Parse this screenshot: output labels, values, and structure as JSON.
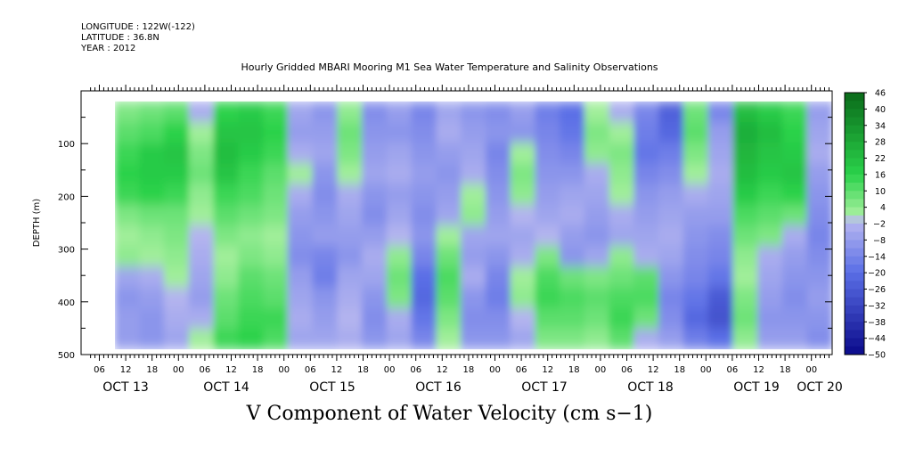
{
  "header": {
    "longitude": "LONGITUDE : 122W(-122)",
    "latitude": "LATITUDE : 36.8N",
    "year": "YEAR : 2012"
  },
  "chart_data": {
    "type": "heatmap",
    "title": "Hourly Gridded MBARI Mooring M1 Sea Water Temperature and Salinity Observations",
    "xlabel": "V Component of Water Velocity (cm s−1)",
    "ylabel": "DEPTH (m)",
    "y_range": [
      500,
      0
    ],
    "y_ticks": [
      100,
      200,
      300,
      400,
      500
    ],
    "data_depth_range": [
      20,
      490
    ],
    "x_hour_ticks": [
      "06",
      "12",
      "18",
      "00",
      "06",
      "12",
      "18",
      "00",
      "06",
      "12",
      "18",
      "00",
      "06",
      "12",
      "18",
      "00",
      "06",
      "12",
      "18",
      "00",
      "06",
      "12",
      "18",
      "00",
      "06",
      "12",
      "18",
      "00"
    ],
    "x_day_labels": [
      "OCT 13",
      "OCT 14",
      "OCT 15",
      "OCT 16",
      "OCT 17",
      "OCT 18",
      "OCT 19",
      "OCT 20"
    ],
    "colorbar_labels": [
      "46",
      "40",
      "34",
      "28",
      "22",
      "16",
      "10",
      "4",
      "-2",
      "-8",
      "-14",
      "-20",
      "-26",
      "-32",
      "-38",
      "-44",
      "-50"
    ],
    "colors": {
      "strong_positive": "#0a6a1a",
      "positive": "#2ad24a",
      "weak_positive": "#a8f0a0",
      "weak_negative": "#b8b8f0",
      "negative": "#5a6ee6",
      "strong_negative": "#0a0a8a"
    },
    "columns": [
      {
        "day_hour": "OCT 13 03",
        "profile": [
          6,
          10,
          14,
          16,
          14,
          6,
          2,
          4,
          -6,
          -10,
          -8,
          -8
        ]
      },
      {
        "day_hour": "OCT 13 09",
        "profile": [
          8,
          12,
          18,
          18,
          16,
          8,
          4,
          2,
          -4,
          -8,
          -10,
          -10
        ]
      },
      {
        "day_hour": "OCT 13 15",
        "profile": [
          10,
          16,
          20,
          18,
          14,
          8,
          6,
          4,
          2,
          -2,
          -4,
          -6
        ]
      },
      {
        "day_hour": "OCT 13 21",
        "profile": [
          -4,
          2,
          6,
          8,
          4,
          2,
          -2,
          -4,
          -6,
          -8,
          -4,
          2
        ]
      },
      {
        "day_hour": "OCT 14 03",
        "profile": [
          16,
          20,
          22,
          20,
          14,
          10,
          6,
          2,
          4,
          8,
          10,
          14
        ]
      },
      {
        "day_hour": "OCT 14 09",
        "profile": [
          18,
          20,
          18,
          14,
          12,
          8,
          4,
          6,
          10,
          12,
          14,
          16
        ]
      },
      {
        "day_hour": "OCT 14 15",
        "profile": [
          14,
          16,
          14,
          10,
          8,
          6,
          2,
          4,
          8,
          10,
          14,
          12
        ]
      },
      {
        "day_hour": "OCT 14 21",
        "profile": [
          -6,
          -8,
          -4,
          2,
          -4,
          -8,
          -10,
          -12,
          -8,
          -6,
          -4,
          -6
        ]
      },
      {
        "day_hour": "OCT 15 03",
        "profile": [
          -10,
          -8,
          -6,
          -10,
          -12,
          -10,
          -8,
          -14,
          -16,
          -10,
          -8,
          -6
        ]
      },
      {
        "day_hour": "OCT 15 09",
        "profile": [
          4,
          8,
          6,
          2,
          -4,
          -6,
          -8,
          -10,
          -6,
          -4,
          -2,
          -4
        ]
      },
      {
        "day_hour": "OCT 15 15",
        "profile": [
          -12,
          -10,
          -8,
          -6,
          -10,
          -12,
          -8,
          -4,
          -6,
          -10,
          -12,
          -10
        ]
      },
      {
        "day_hour": "OCT 15 21",
        "profile": [
          -8,
          -10,
          -6,
          -4,
          -8,
          -6,
          -2,
          4,
          8,
          6,
          -4,
          -6
        ]
      },
      {
        "day_hour": "OCT 16 03",
        "profile": [
          -14,
          -12,
          -10,
          -8,
          -10,
          -12,
          -10,
          -14,
          -20,
          -22,
          -18,
          -14
        ]
      },
      {
        "day_hour": "OCT 16 09",
        "profile": [
          -6,
          -4,
          -8,
          -10,
          -8,
          -6,
          2,
          8,
          12,
          10,
          6,
          2
        ]
      },
      {
        "day_hour": "OCT 16 15",
        "profile": [
          -10,
          -8,
          -6,
          -4,
          2,
          4,
          -6,
          -8,
          -4,
          -10,
          -12,
          -10
        ]
      },
      {
        "day_hour": "OCT 16 21",
        "profile": [
          -12,
          -10,
          -14,
          -12,
          -10,
          -8,
          -6,
          -10,
          -14,
          -16,
          -12,
          -10
        ]
      },
      {
        "day_hour": "OCT 17 03",
        "profile": [
          -8,
          -10,
          2,
          6,
          4,
          -2,
          -6,
          -4,
          2,
          4,
          -2,
          -6
        ]
      },
      {
        "day_hour": "OCT 17 09",
        "profile": [
          -16,
          -14,
          -12,
          -10,
          -8,
          -6,
          -2,
          6,
          12,
          14,
          10,
          6
        ]
      },
      {
        "day_hour": "OCT 17 15",
        "profile": [
          -20,
          -18,
          -14,
          -10,
          -6,
          -4,
          -8,
          -10,
          8,
          12,
          10,
          6
        ]
      },
      {
        "day_hour": "OCT 17 21",
        "profile": [
          2,
          6,
          4,
          -4,
          -6,
          -8,
          -10,
          -6,
          6,
          10,
          8,
          4
        ]
      },
      {
        "day_hour": "OCT 18 03",
        "profile": [
          -4,
          2,
          6,
          4,
          2,
          -4,
          -6,
          4,
          8,
          12,
          14,
          10
        ]
      },
      {
        "day_hour": "OCT 18 09",
        "profile": [
          -14,
          -16,
          -18,
          -14,
          -10,
          -8,
          -6,
          -4,
          10,
          12,
          8,
          -4
        ]
      },
      {
        "day_hour": "OCT 18 15",
        "profile": [
          -24,
          -22,
          -16,
          -12,
          -8,
          -6,
          -4,
          -6,
          -10,
          -14,
          -12,
          -8
        ]
      },
      {
        "day_hour": "OCT 18 21",
        "profile": [
          8,
          10,
          6,
          2,
          -4,
          -8,
          -10,
          -12,
          -14,
          -18,
          -22,
          -16
        ]
      },
      {
        "day_hour": "OCT 19 03",
        "profile": [
          -14,
          -8,
          -6,
          -4,
          -6,
          -8,
          -12,
          -14,
          -18,
          -26,
          -28,
          -20
        ]
      },
      {
        "day_hour": "OCT 19 09",
        "profile": [
          22,
          26,
          24,
          22,
          18,
          12,
          8,
          4,
          2,
          6,
          8,
          4
        ]
      },
      {
        "day_hour": "OCT 19 15",
        "profile": [
          18,
          22,
          20,
          18,
          14,
          10,
          6,
          -4,
          -6,
          -8,
          -10,
          -8
        ]
      },
      {
        "day_hour": "OCT 19 21",
        "profile": [
          14,
          16,
          18,
          20,
          16,
          8,
          -4,
          -8,
          -10,
          -12,
          -10,
          -8
        ]
      },
      {
        "day_hour": "OCT 20 03",
        "profile": [
          -8,
          -6,
          -4,
          -8,
          -10,
          -12,
          -14,
          -12,
          -10,
          -8,
          -10,
          -12
        ]
      }
    ]
  }
}
